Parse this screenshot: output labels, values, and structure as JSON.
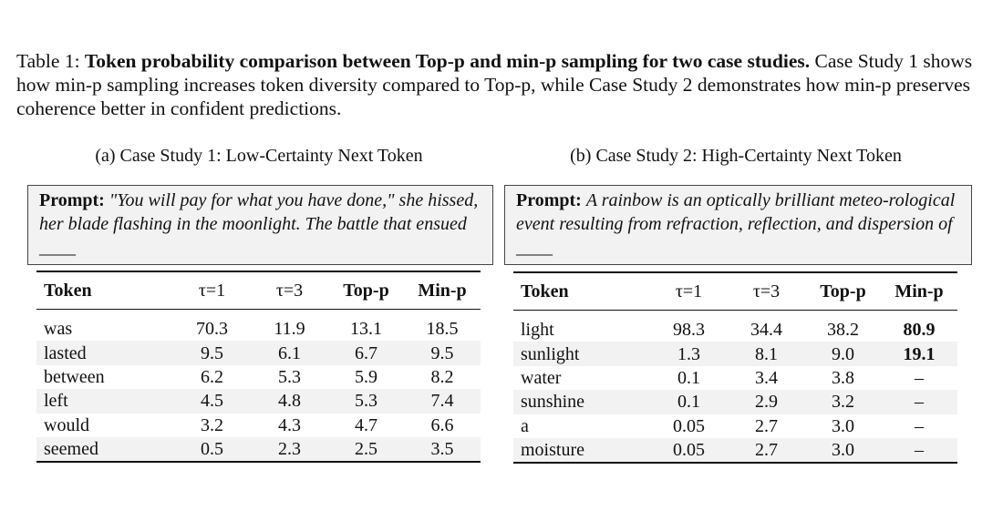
{
  "caption": {
    "label": "Table 1:",
    "title": "Token probability comparison between Top-p and min-p sampling for two case studies.",
    "body": "Case Study 1 shows how min-p sampling increases token diversity compared to Top-p, while Case Study 2 demonstrates how min-p preserves coherence better in confident predictions."
  },
  "columns": [
    "Token",
    "τ=1",
    "τ=3",
    "Top-p",
    "Min-p"
  ],
  "case_a": {
    "subcaption": "(a) Case Study 1: Low-Certainty Next Token",
    "prompt_label": "Prompt:",
    "prompt_text": "\"You will pay for what you have done,\" she hissed, her blade flashing in the moonlight. The battle that ensued ____",
    "rows": [
      {
        "token": "was",
        "t1": "70.3",
        "t3": "11.9",
        "topp": "13.1",
        "minp": "18.5"
      },
      {
        "token": "lasted",
        "t1": "9.5",
        "t3": "6.1",
        "topp": "6.7",
        "minp": "9.5"
      },
      {
        "token": "between",
        "t1": "6.2",
        "t3": "5.3",
        "topp": "5.9",
        "minp": "8.2"
      },
      {
        "token": "left",
        "t1": "4.5",
        "t3": "4.8",
        "topp": "5.3",
        "minp": "7.4"
      },
      {
        "token": "would",
        "t1": "3.2",
        "t3": "4.3",
        "topp": "4.7",
        "minp": "6.6"
      },
      {
        "token": "seemed",
        "t1": "0.5",
        "t3": "2.3",
        "topp": "2.5",
        "minp": "3.5"
      }
    ]
  },
  "case_b": {
    "subcaption": "(b) Case Study 2: High-Certainty Next Token",
    "prompt_label": "Prompt:",
    "prompt_text": "A rainbow is an optically brilliant meteo-rological event resulting from refraction, reflection, and dispersion of ____",
    "rows": [
      {
        "token": "light",
        "t1": "98.3",
        "t3": "34.4",
        "topp": "38.2",
        "minp": "80.9",
        "bold": true
      },
      {
        "token": "sunlight",
        "t1": "1.3",
        "t3": "8.1",
        "topp": "9.0",
        "minp": "19.1",
        "bold": true
      },
      {
        "token": "water",
        "t1": "0.1",
        "t3": "3.4",
        "topp": "3.8",
        "minp": "–"
      },
      {
        "token": "sunshine",
        "t1": "0.1",
        "t3": "2.9",
        "topp": "3.2",
        "minp": "–"
      },
      {
        "token": "a",
        "t1": "0.05",
        "t3": "2.7",
        "topp": "3.0",
        "minp": "–"
      },
      {
        "token": "moisture",
        "t1": "0.05",
        "t3": "2.7",
        "topp": "3.0",
        "minp": "–"
      }
    ]
  }
}
